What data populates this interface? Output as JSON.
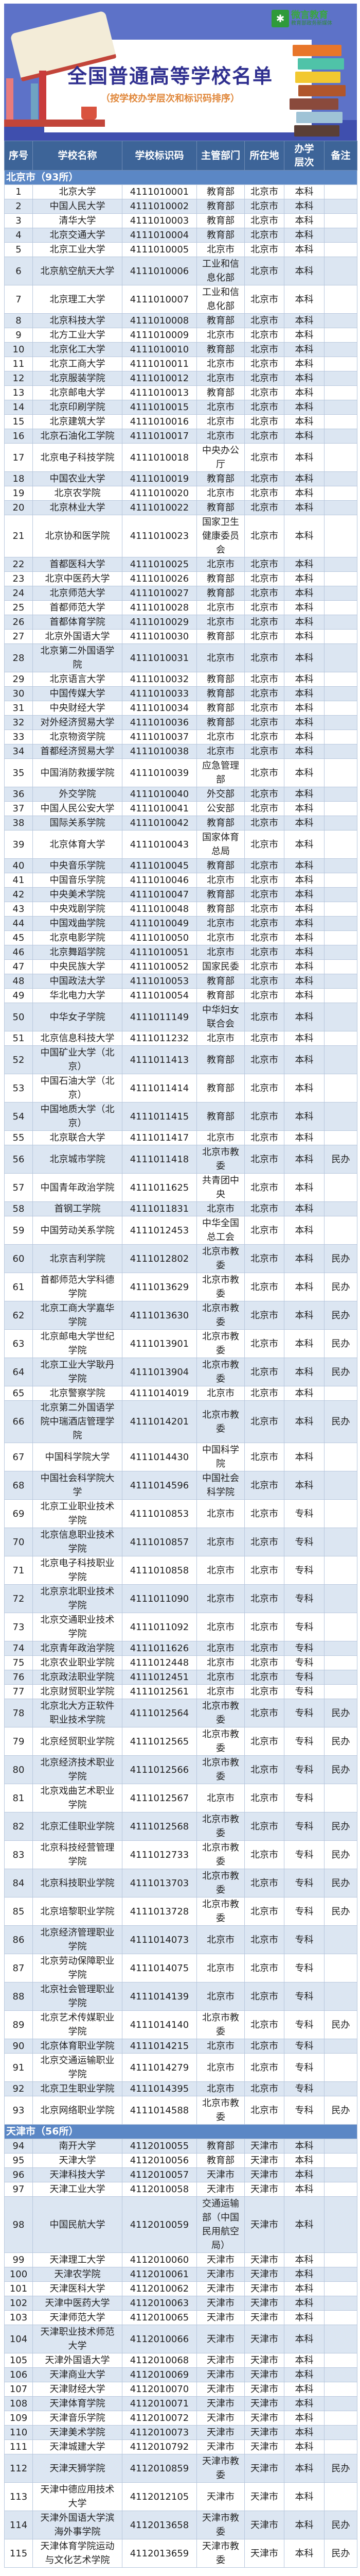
{
  "banner": {
    "title": "全国普通高等学校名单",
    "subtitle": "（按学校办学层次和标识码排序）",
    "logo_name": "微言教育",
    "logo_tagline": "教育部政务新媒体"
  },
  "colors": {
    "header": "#3d6498",
    "section": "#5b87c5",
    "alt_row": "#dce6f2",
    "title": "#2f2f8f",
    "subtitle": "#e0873a"
  },
  "columns": [
    "序号",
    "学校名称",
    "学校标识码",
    "主管部门",
    "所在地",
    "办学层次",
    "备注"
  ],
  "sections": [
    {
      "label": "北京市（93所）",
      "rows": [
        [
          "1",
          "北京大学",
          "4111010001",
          "教育部",
          "北京市",
          "本科",
          ""
        ],
        [
          "2",
          "中国人民大学",
          "4111010002",
          "教育部",
          "北京市",
          "本科",
          ""
        ],
        [
          "3",
          "清华大学",
          "4111010003",
          "教育部",
          "北京市",
          "本科",
          ""
        ],
        [
          "4",
          "北京交通大学",
          "4111010004",
          "教育部",
          "北京市",
          "本科",
          ""
        ],
        [
          "5",
          "北京工业大学",
          "4111010005",
          "北京市",
          "北京市",
          "本科",
          ""
        ],
        [
          "6",
          "北京航空航天大学",
          "4111010006",
          "工业和信息化部",
          "北京市",
          "本科",
          ""
        ],
        [
          "7",
          "北京理工大学",
          "4111010007",
          "工业和信息化部",
          "北京市",
          "本科",
          ""
        ],
        [
          "8",
          "北京科技大学",
          "4111010008",
          "教育部",
          "北京市",
          "本科",
          ""
        ],
        [
          "9",
          "北方工业大学",
          "4111010009",
          "北京市",
          "北京市",
          "本科",
          ""
        ],
        [
          "10",
          "北京化工大学",
          "4111010010",
          "教育部",
          "北京市",
          "本科",
          ""
        ],
        [
          "11",
          "北京工商大学",
          "4111010011",
          "北京市",
          "北京市",
          "本科",
          ""
        ],
        [
          "12",
          "北京服装学院",
          "4111010012",
          "北京市",
          "北京市",
          "本科",
          ""
        ],
        [
          "13",
          "北京邮电大学",
          "4111010013",
          "教育部",
          "北京市",
          "本科",
          ""
        ],
        [
          "14",
          "北京印刷学院",
          "4111010015",
          "北京市",
          "北京市",
          "本科",
          ""
        ],
        [
          "15",
          "北京建筑大学",
          "4111010016",
          "北京市",
          "北京市",
          "本科",
          ""
        ],
        [
          "16",
          "北京石油化工学院",
          "4111010017",
          "北京市",
          "北京市",
          "本科",
          ""
        ],
        [
          "17",
          "北京电子科技学院",
          "4111010018",
          "中央办公厅",
          "北京市",
          "本科",
          ""
        ],
        [
          "18",
          "中国农业大学",
          "4111010019",
          "教育部",
          "北京市",
          "本科",
          ""
        ],
        [
          "19",
          "北京农学院",
          "4111010020",
          "北京市",
          "北京市",
          "本科",
          ""
        ],
        [
          "20",
          "北京林业大学",
          "4111010022",
          "教育部",
          "北京市",
          "本科",
          ""
        ],
        [
          "21",
          "北京协和医学院",
          "4111010023",
          "国家卫生健康委员会",
          "北京市",
          "本科",
          ""
        ],
        [
          "22",
          "首都医科大学",
          "4111010025",
          "北京市",
          "北京市",
          "本科",
          ""
        ],
        [
          "23",
          "北京中医药大学",
          "4111010026",
          "教育部",
          "北京市",
          "本科",
          ""
        ],
        [
          "24",
          "北京师范大学",
          "4111010027",
          "教育部",
          "北京市",
          "本科",
          ""
        ],
        [
          "25",
          "首都师范大学",
          "4111010028",
          "北京市",
          "北京市",
          "本科",
          ""
        ],
        [
          "26",
          "首都体育学院",
          "4111010029",
          "北京市",
          "北京市",
          "本科",
          ""
        ],
        [
          "27",
          "北京外国语大学",
          "4111010030",
          "教育部",
          "北京市",
          "本科",
          ""
        ],
        [
          "28",
          "北京第二外国语学院",
          "4111010031",
          "北京市",
          "北京市",
          "本科",
          ""
        ],
        [
          "29",
          "北京语言大学",
          "4111010032",
          "教育部",
          "北京市",
          "本科",
          ""
        ],
        [
          "30",
          "中国传媒大学",
          "4111010033",
          "教育部",
          "北京市",
          "本科",
          ""
        ],
        [
          "31",
          "中央财经大学",
          "4111010034",
          "教育部",
          "北京市",
          "本科",
          ""
        ],
        [
          "32",
          "对外经济贸易大学",
          "4111010036",
          "教育部",
          "北京市",
          "本科",
          ""
        ],
        [
          "33",
          "北京物资学院",
          "4111010037",
          "北京市",
          "北京市",
          "本科",
          ""
        ],
        [
          "34",
          "首都经济贸易大学",
          "4111010038",
          "北京市",
          "北京市",
          "本科",
          ""
        ],
        [
          "35",
          "中国消防救援学院",
          "4111010039",
          "应急管理部",
          "北京市",
          "本科",
          ""
        ],
        [
          "36",
          "外交学院",
          "4111010040",
          "外交部",
          "北京市",
          "本科",
          ""
        ],
        [
          "37",
          "中国人民公安大学",
          "4111010041",
          "公安部",
          "北京市",
          "本科",
          ""
        ],
        [
          "38",
          "国际关系学院",
          "4111010042",
          "教育部",
          "北京市",
          "本科",
          ""
        ],
        [
          "39",
          "北京体育大学",
          "4111010043",
          "国家体育总局",
          "北京市",
          "本科",
          ""
        ],
        [
          "40",
          "中央音乐学院",
          "4111010045",
          "教育部",
          "北京市",
          "本科",
          ""
        ],
        [
          "41",
          "中国音乐学院",
          "4111010046",
          "北京市",
          "北京市",
          "本科",
          ""
        ],
        [
          "42",
          "中央美术学院",
          "4111010047",
          "教育部",
          "北京市",
          "本科",
          ""
        ],
        [
          "43",
          "中央戏剧学院",
          "4111010048",
          "教育部",
          "北京市",
          "本科",
          ""
        ],
        [
          "44",
          "中国戏曲学院",
          "4111010049",
          "北京市",
          "北京市",
          "本科",
          ""
        ],
        [
          "45",
          "北京电影学院",
          "4111010050",
          "北京市",
          "北京市",
          "本科",
          ""
        ],
        [
          "46",
          "北京舞蹈学院",
          "4111010051",
          "北京市",
          "北京市",
          "本科",
          ""
        ],
        [
          "47",
          "中央民族大学",
          "4111010052",
          "国家民委",
          "北京市",
          "本科",
          ""
        ],
        [
          "48",
          "中国政法大学",
          "4111010053",
          "教育部",
          "北京市",
          "本科",
          ""
        ],
        [
          "49",
          "华北电力大学",
          "4111010054",
          "教育部",
          "北京市",
          "本科",
          ""
        ],
        [
          "50",
          "中华女子学院",
          "4111011149",
          "中华妇女联合会",
          "北京市",
          "本科",
          ""
        ],
        [
          "51",
          "北京信息科技大学",
          "4111011232",
          "北京市",
          "北京市",
          "本科",
          ""
        ],
        [
          "52",
          "中国矿业大学（北京）",
          "4111011413",
          "教育部",
          "北京市",
          "本科",
          ""
        ],
        [
          "53",
          "中国石油大学（北京）",
          "4111011414",
          "教育部",
          "北京市",
          "本科",
          ""
        ],
        [
          "54",
          "中国地质大学（北京）",
          "4111011415",
          "教育部",
          "北京市",
          "本科",
          ""
        ],
        [
          "55",
          "北京联合大学",
          "4111011417",
          "北京市",
          "北京市",
          "本科",
          ""
        ],
        [
          "56",
          "北京城市学院",
          "4111011418",
          "北京市教委",
          "北京市",
          "本科",
          "民办"
        ],
        [
          "57",
          "中国青年政治学院",
          "4111011625",
          "共青团中央",
          "北京市",
          "本科",
          ""
        ],
        [
          "58",
          "首钢工学院",
          "4111011831",
          "北京市",
          "北京市",
          "本科",
          ""
        ],
        [
          "59",
          "中国劳动关系学院",
          "4111012453",
          "中华全国总工会",
          "北京市",
          "本科",
          ""
        ],
        [
          "60",
          "北京吉利学院",
          "4111012802",
          "北京市教委",
          "北京市",
          "本科",
          "民办"
        ],
        [
          "61",
          "首都师范大学科德学院",
          "4111013629",
          "北京市教委",
          "北京市",
          "本科",
          "民办"
        ],
        [
          "62",
          "北京工商大学嘉华学院",
          "4111013630",
          "北京市教委",
          "北京市",
          "本科",
          "民办"
        ],
        [
          "63",
          "北京邮电大学世纪学院",
          "4111013901",
          "北京市教委",
          "北京市",
          "本科",
          "民办"
        ],
        [
          "64",
          "北京工业大学耿丹学院",
          "4111013904",
          "北京市教委",
          "北京市",
          "本科",
          "民办"
        ],
        [
          "65",
          "北京警察学院",
          "4111014019",
          "北京市",
          "北京市",
          "本科",
          ""
        ],
        [
          "66",
          "北京第二外国语学院中瑞酒店管理学院",
          "4111014201",
          "北京市教委",
          "北京市",
          "本科",
          "民办"
        ],
        [
          "67",
          "中国科学院大学",
          "4111014430",
          "中国科学院",
          "北京市",
          "本科",
          ""
        ],
        [
          "68",
          "中国社会科学院大学",
          "4111014596",
          "中国社会科学院",
          "北京市",
          "本科",
          ""
        ],
        [
          "69",
          "北京工业职业技术学院",
          "4111010853",
          "北京市",
          "北京市",
          "专科",
          ""
        ],
        [
          "70",
          "北京信息职业技术学院",
          "4111010857",
          "北京市",
          "北京市",
          "专科",
          ""
        ],
        [
          "71",
          "北京电子科技职业学院",
          "4111010858",
          "北京市",
          "北京市",
          "专科",
          ""
        ],
        [
          "72",
          "北京京北职业技术学院",
          "4111011090",
          "北京市",
          "北京市",
          "专科",
          ""
        ],
        [
          "73",
          "北京交通职业技术学院",
          "4111011092",
          "北京市",
          "北京市",
          "专科",
          ""
        ],
        [
          "74",
          "北京青年政治学院",
          "4111011626",
          "北京市",
          "北京市",
          "专科",
          ""
        ],
        [
          "75",
          "北京农业职业学院",
          "4111012448",
          "北京市",
          "北京市",
          "专科",
          ""
        ],
        [
          "76",
          "北京政法职业学院",
          "4111012451",
          "北京市",
          "北京市",
          "专科",
          ""
        ],
        [
          "77",
          "北京财贸职业学院",
          "4111012561",
          "北京市",
          "北京市",
          "专科",
          ""
        ],
        [
          "78",
          "北京北大方正软件职业技术学院",
          "4111012564",
          "北京市教委",
          "北京市",
          "专科",
          "民办"
        ],
        [
          "79",
          "北京经贸职业学院",
          "4111012565",
          "北京市教委",
          "北京市",
          "专科",
          "民办"
        ],
        [
          "80",
          "北京经济技术职业学院",
          "4111012566",
          "北京市教委",
          "北京市",
          "专科",
          "民办"
        ],
        [
          "81",
          "北京戏曲艺术职业学院",
          "4111012567",
          "北京市",
          "北京市",
          "专科",
          ""
        ],
        [
          "82",
          "北京汇佳职业学院",
          "4111012568",
          "北京市教委",
          "北京市",
          "专科",
          "民办"
        ],
        [
          "83",
          "北京科技经营管理学院",
          "4111012733",
          "北京市教委",
          "北京市",
          "专科",
          "民办"
        ],
        [
          "84",
          "北京科技职业学院",
          "4111013703",
          "北京市教委",
          "北京市",
          "专科",
          "民办"
        ],
        [
          "85",
          "北京培黎职业学院",
          "4111013728",
          "北京市教委",
          "北京市",
          "专科",
          "民办"
        ],
        [
          "86",
          "北京经济管理职业学院",
          "4111014073",
          "北京市",
          "北京市",
          "专科",
          ""
        ],
        [
          "87",
          "北京劳动保障职业学院",
          "4111014075",
          "北京市",
          "北京市",
          "专科",
          ""
        ],
        [
          "88",
          "北京社会管理职业学院",
          "4111014139",
          "北京市",
          "北京市",
          "专科",
          ""
        ],
        [
          "89",
          "北京艺术传媒职业学院",
          "4111014140",
          "北京市教委",
          "北京市",
          "专科",
          "民办"
        ],
        [
          "90",
          "北京体育职业学院",
          "4111014215",
          "北京市",
          "北京市",
          "专科",
          ""
        ],
        [
          "91",
          "北京交通运输职业学院",
          "4111014279",
          "北京市",
          "北京市",
          "专科",
          ""
        ],
        [
          "92",
          "北京卫生职业学院",
          "4111014395",
          "北京市",
          "北京市",
          "专科",
          ""
        ],
        [
          "93",
          "北京网络职业学院",
          "4111014588",
          "北京市教委",
          "北京市",
          "专科",
          "民办"
        ]
      ]
    },
    {
      "label": "天津市（56所）",
      "rows": [
        [
          "94",
          "南开大学",
          "4112010055",
          "教育部",
          "天津市",
          "本科",
          ""
        ],
        [
          "95",
          "天津大学",
          "4112010056",
          "教育部",
          "天津市",
          "本科",
          ""
        ],
        [
          "96",
          "天津科技大学",
          "4112010057",
          "天津市",
          "天津市",
          "本科",
          ""
        ],
        [
          "97",
          "天津工业大学",
          "4112010058",
          "天津市",
          "天津市",
          "本科",
          ""
        ],
        [
          "98",
          "中国民航大学",
          "4112010059",
          "交通运输部（中国民用航空局）",
          "天津市",
          "本科",
          ""
        ],
        [
          "99",
          "天津理工大学",
          "4112010060",
          "天津市",
          "天津市",
          "本科",
          ""
        ],
        [
          "100",
          "天津农学院",
          "4112010061",
          "天津市",
          "天津市",
          "本科",
          ""
        ],
        [
          "101",
          "天津医科大学",
          "4112010062",
          "天津市",
          "天津市",
          "本科",
          ""
        ],
        [
          "102",
          "天津中医药大学",
          "4112010063",
          "天津市",
          "天津市",
          "本科",
          ""
        ],
        [
          "103",
          "天津师范大学",
          "4112010065",
          "天津市",
          "天津市",
          "本科",
          ""
        ],
        [
          "104",
          "天津职业技术师范大学",
          "4112010066",
          "天津市",
          "天津市",
          "本科",
          ""
        ],
        [
          "105",
          "天津外国语大学",
          "4112010068",
          "天津市",
          "天津市",
          "本科",
          ""
        ],
        [
          "106",
          "天津商业大学",
          "4112010069",
          "天津市",
          "天津市",
          "本科",
          ""
        ],
        [
          "107",
          "天津财经大学",
          "4112010070",
          "天津市",
          "天津市",
          "本科",
          ""
        ],
        [
          "108",
          "天津体育学院",
          "4112010071",
          "天津市",
          "天津市",
          "本科",
          ""
        ],
        [
          "109",
          "天津音乐学院",
          "4112010072",
          "天津市",
          "天津市",
          "本科",
          ""
        ],
        [
          "110",
          "天津美术学院",
          "4112010073",
          "天津市",
          "天津市",
          "本科",
          ""
        ],
        [
          "111",
          "天津城建大学",
          "4112010792",
          "天津市",
          "天津市",
          "本科",
          ""
        ],
        [
          "112",
          "天津天狮学院",
          "4112010859",
          "天津市教委",
          "天津市",
          "本科",
          "民办"
        ],
        [
          "113",
          "天津中德应用技术大学",
          "4112012105",
          "天津市",
          "天津市",
          "本科",
          ""
        ],
        [
          "114",
          "天津外国语大学滨海外事学院",
          "4112013658",
          "天津市教委",
          "天津市",
          "本科",
          "民办"
        ],
        [
          "115",
          "天津体育学院运动与文化艺术学院",
          "4112013659",
          "天津市教委",
          "天津市",
          "本科",
          "民办"
        ]
      ]
    }
  ]
}
